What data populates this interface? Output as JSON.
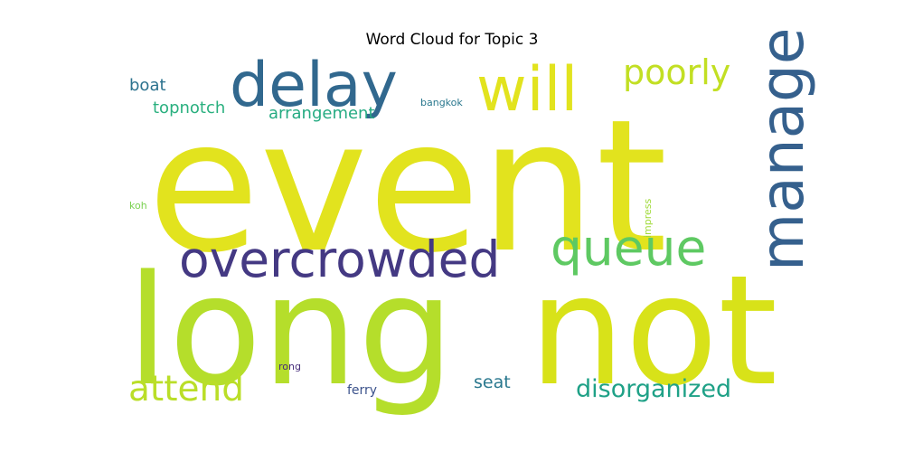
{
  "title": "Word Cloud for Topic 3",
  "chart_data": {
    "type": "wordcloud",
    "title": "Word Cloud for Topic 3",
    "words": [
      {
        "text": "event",
        "weight": 1.0,
        "color": "#e2e31e",
        "orientation": "horizontal"
      },
      {
        "text": "long",
        "weight": 0.83,
        "color": "#b5de2b",
        "orientation": "horizontal"
      },
      {
        "text": "not",
        "weight": 0.83,
        "color": "#d8e219",
        "orientation": "horizontal"
      },
      {
        "text": "delay",
        "weight": 0.33,
        "color": "#31688e",
        "orientation": "horizontal"
      },
      {
        "text": "will",
        "weight": 0.33,
        "color": "#e2e31e",
        "orientation": "horizontal"
      },
      {
        "text": "manage",
        "weight": 0.33,
        "color": "#35608d",
        "orientation": "vertical"
      },
      {
        "text": "overcrowded",
        "weight": 0.27,
        "color": "#443983",
        "orientation": "horizontal"
      },
      {
        "text": "queue",
        "weight": 0.27,
        "color": "#5ec962",
        "orientation": "horizontal"
      },
      {
        "text": "poorly",
        "weight": 0.18,
        "color": "#c2df23",
        "orientation": "horizontal"
      },
      {
        "text": "attend",
        "weight": 0.19,
        "color": "#bade28",
        "orientation": "horizontal"
      },
      {
        "text": "disorganized",
        "weight": 0.13,
        "color": "#1fa187",
        "orientation": "horizontal"
      },
      {
        "text": "seat",
        "weight": 0.09,
        "color": "#2a788e",
        "orientation": "horizontal"
      },
      {
        "text": "arrangement",
        "weight": 0.09,
        "color": "#25ab82",
        "orientation": "horizontal"
      },
      {
        "text": "topnotch",
        "weight": 0.09,
        "color": "#2ab07f",
        "orientation": "horizontal"
      },
      {
        "text": "boat",
        "weight": 0.09,
        "color": "#2c728e",
        "orientation": "horizontal"
      },
      {
        "text": "ferry",
        "weight": 0.07,
        "color": "#3b528b",
        "orientation": "horizontal"
      },
      {
        "text": "bangkok",
        "weight": 0.05,
        "color": "#2a788e",
        "orientation": "horizontal"
      },
      {
        "text": "impress",
        "weight": 0.05,
        "color": "#a0da39",
        "orientation": "vertical"
      },
      {
        "text": "koh",
        "weight": 0.05,
        "color": "#7ad151",
        "orientation": "horizontal"
      },
      {
        "text": "rong",
        "weight": 0.05,
        "color": "#472d7b",
        "orientation": "horizontal"
      }
    ]
  }
}
